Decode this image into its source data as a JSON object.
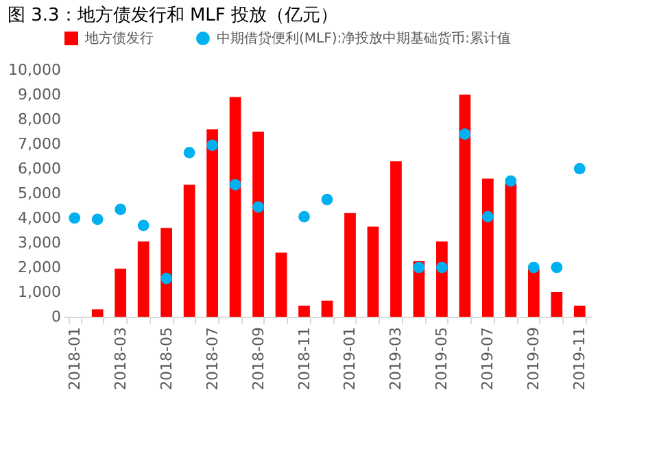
{
  "chart_data": {
    "type": "bar",
    "title": "图 3.3：地方债发行和 MLF 投放（亿元）",
    "categories": [
      "2018-01",
      null,
      "2018-03",
      null,
      "2018-05",
      null,
      "2018-07",
      null,
      "2018-09",
      null,
      "2018-11",
      null,
      "2019-01",
      null,
      "2019-03",
      null,
      "2019-05",
      null,
      "2019-07",
      null,
      "2019-09",
      null,
      "2019-11"
    ],
    "series": [
      {
        "name": "地方债发行",
        "color": "#ff0000",
        "values": [
          null,
          300,
          1950,
          3050,
          3600,
          5350,
          7600,
          8900,
          7500,
          2600,
          450,
          650,
          4200,
          3650,
          6300,
          2250,
          3050,
          9000,
          5600,
          5400,
          1950,
          1000,
          450
        ]
      },
      {
        "name": "中期借贷便利(MLF):净投放中期基础货币:累计值",
        "color": "#00b0f0",
        "type": "scatter",
        "values": [
          4000,
          3950,
          4350,
          3700,
          1550,
          6650,
          6950,
          5350,
          4450,
          null,
          4050,
          4750,
          null,
          null,
          null,
          2000,
          2000,
          7400,
          4050,
          5500,
          2000,
          2000,
          6000
        ]
      }
    ],
    "ylim": [
      0,
      10000
    ],
    "yticks": [
      0,
      {
        "value": 1000,
        "label": "1,000"
      },
      {
        "value": 2000,
        "label": "2,000"
      },
      {
        "value": 3000,
        "label": "3,000"
      },
      {
        "value": 4000,
        "label": "4,000"
      },
      {
        "value": 5000,
        "label": "5,000"
      },
      {
        "value": 6000,
        "label": "6,000"
      },
      {
        "value": 7000,
        "label": "7,000"
      },
      {
        "value": 8000,
        "label": "8,000"
      },
      {
        "value": 9000,
        "label": "9,000"
      },
      {
        "value": 10000,
        "label": "10,000"
      }
    ],
    "grid": false,
    "legend": "top",
    "marker": "circle"
  }
}
